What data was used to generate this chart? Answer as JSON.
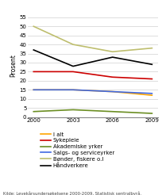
{
  "years": [
    2000,
    2003,
    2006,
    2009
  ],
  "series": [
    {
      "name": "I alt",
      "values": [
        15,
        15,
        14,
        12
      ],
      "color": "#FFA500",
      "linewidth": 1.2
    },
    {
      "name": "Sykepleie",
      "values": [
        25,
        25,
        22,
        21
      ],
      "color": "#CC0000",
      "linewidth": 1.2
    },
    {
      "name": "Akademiske yrker",
      "values": [
        3,
        4,
        3,
        2
      ],
      "color": "#6B8E23",
      "linewidth": 1.2
    },
    {
      "name": "Salgs- og serviceyrker",
      "values": [
        15,
        15,
        14,
        13
      ],
      "color": "#4169E1",
      "linewidth": 1.2
    },
    {
      "name": "Bønder, fiskere o.l",
      "values": [
        50,
        40,
        36,
        38
      ],
      "color": "#BEBE6E",
      "linewidth": 1.2
    },
    {
      "name": "Håndverkere",
      "values": [
        37,
        28,
        33,
        29
      ],
      "color": "#000000",
      "linewidth": 1.2
    }
  ],
  "ylabel": "Prosent",
  "ylim": [
    0,
    57
  ],
  "yticks": [
    0,
    5,
    10,
    15,
    20,
    25,
    30,
    35,
    40,
    45,
    50,
    55
  ],
  "xticks": [
    2000,
    2003,
    2006,
    2009
  ],
  "source_text": "Kilde: Levekårsundersøkelsene 2000-2009, Statistisk sentralbyrå.",
  "background_color": "#ffffff",
  "grid_color": "#d0d0d0"
}
